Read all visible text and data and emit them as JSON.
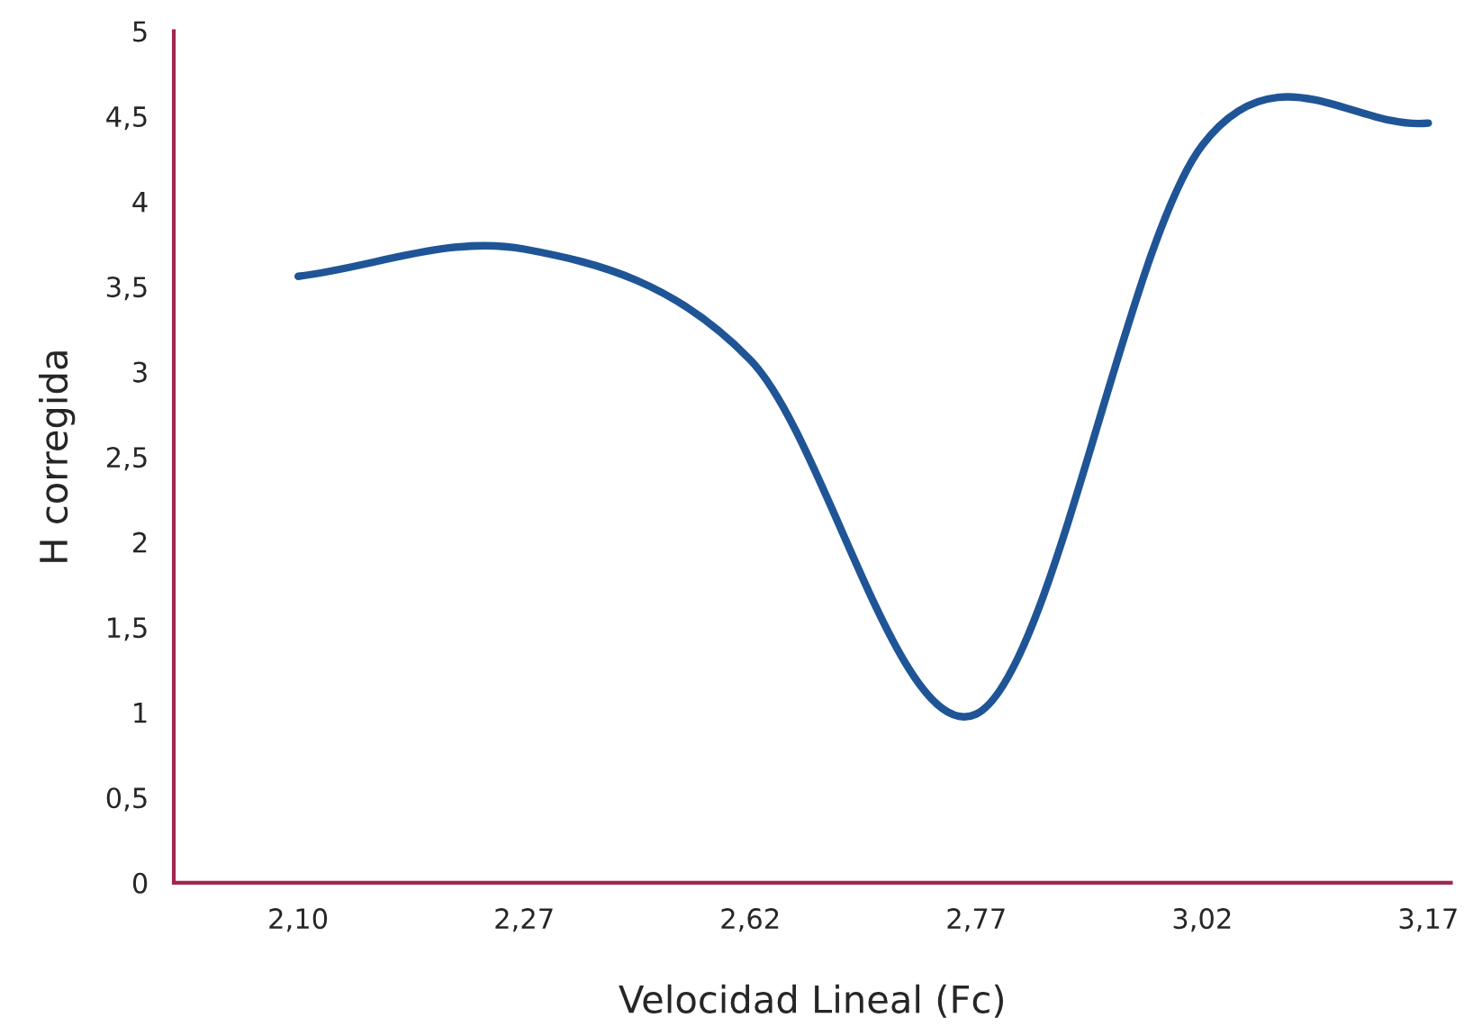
{
  "chart_data": {
    "type": "line",
    "xlabel": "Velocidad Lineal (Fc)",
    "ylabel": "H corregida",
    "categories": [
      "2,10",
      "2,27",
      "2,62",
      "2,77",
      "3,02",
      "3,17"
    ],
    "series": [
      {
        "color": "#1f5596",
        "values": [
          3.56,
          3.72,
          3.07,
          0.99,
          4.33,
          4.46
        ]
      }
    ],
    "ylim": [
      0,
      5
    ],
    "yticks": [
      0,
      {
        "value": 0.5,
        "label": "0,5"
      },
      1,
      {
        "value": 1.5,
        "label": "1,5"
      },
      2,
      {
        "value": 2.5,
        "label": "2,5"
      },
      3,
      {
        "value": 3.5,
        "label": "3,5"
      },
      4,
      {
        "value": 4.5,
        "label": "4,5"
      },
      5
    ],
    "grid": false,
    "marker": "none",
    "line_style": "solid"
  }
}
